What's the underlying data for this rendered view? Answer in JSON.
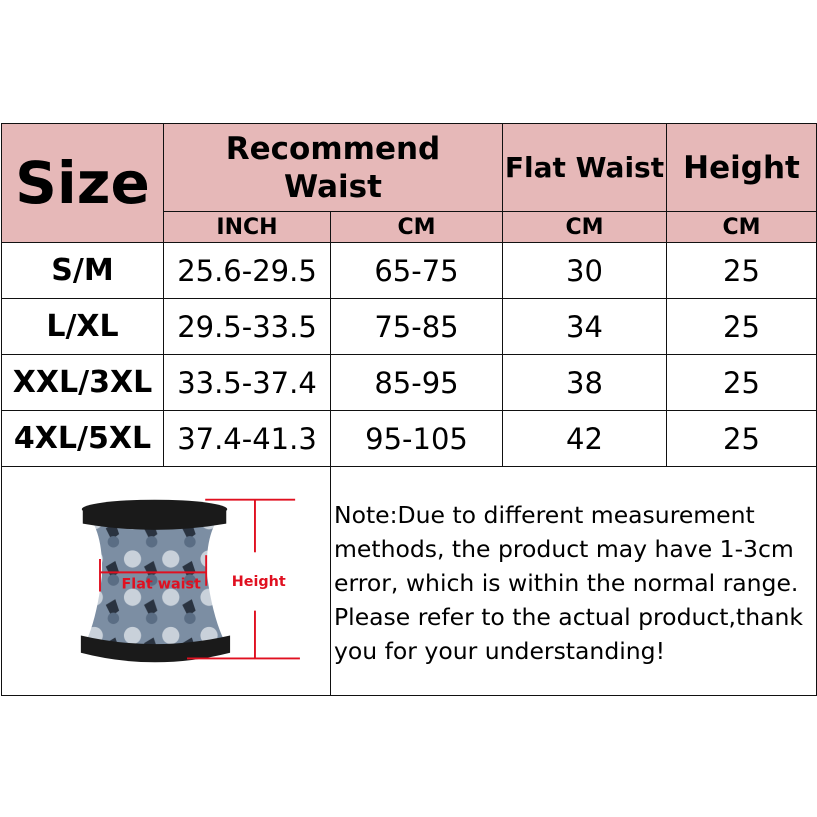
{
  "header": {
    "size": "Size",
    "recommend_waist": "Recommend Waist",
    "flat_waist": "Flat Waist",
    "height": "Height",
    "units": [
      "INCH",
      "CM",
      "CM",
      "CM"
    ]
  },
  "rows": [
    {
      "size": "S/M",
      "inch": "25.6-29.5",
      "cm": "65-75",
      "flat": "30",
      "height": "25"
    },
    {
      "size": "L/XL",
      "inch": "29.5-33.5",
      "cm": "75-85",
      "flat": "34",
      "height": "25"
    },
    {
      "size": "XXL/3XL",
      "inch": "33.5-37.4",
      "cm": "85-95",
      "flat": "38",
      "height": "25"
    },
    {
      "size": "4XL/5XL",
      "inch": "37.4-41.3",
      "cm": "95-105",
      "flat": "42",
      "height": "25"
    }
  ],
  "diagram": {
    "flat_waist_label": "Flat waist",
    "height_label": "Height"
  },
  "note": "Note:Due to different measurement methods, the product may have 1-3cm error, which is within the normal range. Please refer to the actual product,thank you for your understanding!",
  "colors": {
    "header_bg": "#e6b8b8",
    "measure_red": "#e01020"
  }
}
